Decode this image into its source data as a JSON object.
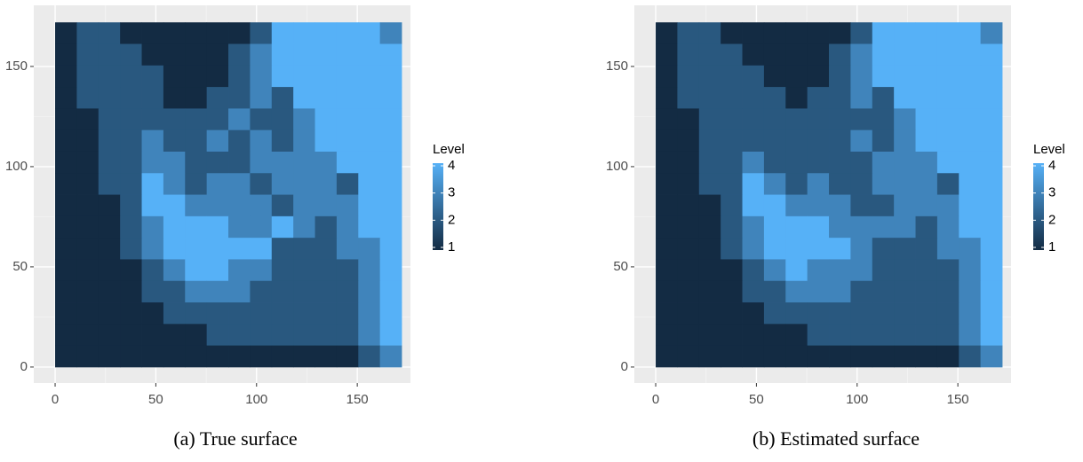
{
  "chart_data": [
    {
      "type": "heatmap",
      "caption": "(a) True surface",
      "x": [
        5.375,
        16.125,
        26.875,
        37.625,
        48.375,
        59.125,
        69.875,
        80.625,
        91.375,
        102.125,
        112.875,
        123.625,
        134.375,
        145.125,
        155.875,
        166.625
      ],
      "y": [
        166.625,
        155.875,
        145.125,
        134.375,
        123.625,
        112.875,
        102.125,
        91.375,
        80.625,
        69.875,
        59.125,
        48.375,
        37.625,
        26.875,
        16.125,
        5.375
      ],
      "z": [
        [
          1,
          2,
          2,
          1,
          1,
          1,
          1,
          1,
          1,
          2,
          4,
          4,
          4,
          4,
          4,
          3
        ],
        [
          1,
          2,
          2,
          2,
          1,
          1,
          1,
          1,
          2,
          3,
          4,
          4,
          4,
          4,
          4,
          4
        ],
        [
          1,
          2,
          2,
          2,
          2,
          1,
          1,
          1,
          2,
          3,
          4,
          4,
          4,
          4,
          4,
          4
        ],
        [
          1,
          2,
          2,
          2,
          2,
          1,
          1,
          2,
          2,
          3,
          2,
          4,
          4,
          4,
          4,
          4
        ],
        [
          1,
          1,
          2,
          2,
          2,
          2,
          2,
          2,
          3,
          2,
          2,
          3,
          4,
          4,
          4,
          4
        ],
        [
          1,
          1,
          2,
          2,
          3,
          2,
          2,
          3,
          2,
          3,
          2,
          3,
          4,
          4,
          4,
          4
        ],
        [
          1,
          1,
          2,
          2,
          3,
          3,
          2,
          2,
          2,
          3,
          3,
          3,
          3,
          4,
          4,
          4
        ],
        [
          1,
          1,
          2,
          2,
          4,
          3,
          2,
          3,
          3,
          2,
          3,
          3,
          3,
          2,
          4,
          4
        ],
        [
          1,
          1,
          1,
          2,
          4,
          4,
          3,
          3,
          3,
          3,
          2,
          3,
          3,
          3,
          4,
          4
        ],
        [
          1,
          1,
          1,
          2,
          3,
          4,
          4,
          4,
          3,
          3,
          4,
          3,
          2,
          3,
          4,
          4
        ],
        [
          1,
          1,
          1,
          2,
          3,
          4,
          4,
          4,
          4,
          4,
          2,
          2,
          2,
          3,
          3,
          4
        ],
        [
          1,
          1,
          1,
          1,
          2,
          3,
          4,
          4,
          3,
          3,
          2,
          2,
          2,
          2,
          3,
          4
        ],
        [
          1,
          1,
          1,
          1,
          2,
          2,
          3,
          3,
          3,
          2,
          2,
          2,
          2,
          2,
          3,
          4
        ],
        [
          1,
          1,
          1,
          1,
          1,
          2,
          2,
          2,
          2,
          2,
          2,
          2,
          2,
          2,
          3,
          4
        ],
        [
          1,
          1,
          1,
          1,
          1,
          1,
          1,
          2,
          2,
          2,
          2,
          2,
          2,
          2,
          3,
          4
        ],
        [
          1,
          1,
          1,
          1,
          1,
          1,
          1,
          1,
          1,
          1,
          1,
          1,
          1,
          1,
          2,
          3
        ]
      ],
      "xlim": [
        -10.6,
        176.4
      ],
      "ylim": [
        -8,
        180.5
      ],
      "xticks": [
        0,
        50,
        100,
        150
      ],
      "yticks": [
        0,
        50,
        100,
        150
      ],
      "legend_title": "Level",
      "legend_lim": [
        1,
        4
      ],
      "legend_ticks": [
        1,
        2,
        3,
        4
      ],
      "colors": [
        "#132b43",
        "#56b1f7"
      ]
    },
    {
      "type": "heatmap",
      "caption": "(b) Estimated surface",
      "x": [
        5.375,
        16.125,
        26.875,
        37.625,
        48.375,
        59.125,
        69.875,
        80.625,
        91.375,
        102.125,
        112.875,
        123.625,
        134.375,
        145.125,
        155.875,
        166.625
      ],
      "y": [
        166.625,
        155.875,
        145.125,
        134.375,
        123.625,
        112.875,
        102.125,
        91.375,
        80.625,
        69.875,
        59.125,
        48.375,
        37.625,
        26.875,
        16.125,
        5.375
      ],
      "z": [
        [
          1,
          2,
          2,
          1,
          1,
          1,
          1,
          1,
          1,
          2,
          4,
          4,
          4,
          4,
          4,
          3
        ],
        [
          1,
          2,
          2,
          2,
          1,
          1,
          1,
          1,
          2,
          3,
          4,
          4,
          4,
          4,
          4,
          4
        ],
        [
          1,
          2,
          2,
          2,
          2,
          1,
          1,
          1,
          2,
          3,
          4,
          4,
          4,
          4,
          4,
          4
        ],
        [
          1,
          2,
          2,
          2,
          2,
          2,
          1,
          2,
          2,
          3,
          2,
          4,
          4,
          4,
          4,
          4
        ],
        [
          1,
          1,
          2,
          2,
          2,
          2,
          2,
          2,
          2,
          2,
          2,
          3,
          4,
          4,
          4,
          4
        ],
        [
          1,
          1,
          2,
          2,
          2,
          2,
          2,
          2,
          2,
          3,
          2,
          3,
          4,
          4,
          4,
          4
        ],
        [
          1,
          1,
          2,
          2,
          3,
          2,
          2,
          2,
          2,
          2,
          3,
          3,
          3,
          4,
          4,
          4
        ],
        [
          1,
          1,
          2,
          2,
          4,
          3,
          2,
          3,
          2,
          2,
          3,
          3,
          3,
          2,
          4,
          4
        ],
        [
          1,
          1,
          1,
          2,
          4,
          4,
          3,
          3,
          3,
          2,
          2,
          3,
          3,
          3,
          4,
          4
        ],
        [
          1,
          1,
          1,
          2,
          3,
          4,
          4,
          4,
          3,
          3,
          3,
          3,
          2,
          3,
          4,
          4
        ],
        [
          1,
          1,
          1,
          2,
          3,
          4,
          4,
          4,
          4,
          3,
          2,
          2,
          2,
          3,
          3,
          4
        ],
        [
          1,
          1,
          1,
          1,
          2,
          3,
          4,
          3,
          3,
          3,
          2,
          2,
          2,
          2,
          3,
          4
        ],
        [
          1,
          1,
          1,
          1,
          2,
          2,
          3,
          3,
          3,
          2,
          2,
          2,
          2,
          2,
          3,
          4
        ],
        [
          1,
          1,
          1,
          1,
          1,
          2,
          2,
          2,
          2,
          2,
          2,
          2,
          2,
          2,
          3,
          4
        ],
        [
          1,
          1,
          1,
          1,
          1,
          1,
          1,
          2,
          2,
          2,
          2,
          2,
          2,
          2,
          3,
          4
        ],
        [
          1,
          1,
          1,
          1,
          1,
          1,
          1,
          1,
          1,
          1,
          1,
          1,
          1,
          1,
          2,
          3
        ]
      ],
      "xlim": [
        -10.6,
        176.4
      ],
      "ylim": [
        -8,
        180.5
      ],
      "xticks": [
        0,
        50,
        100,
        150
      ],
      "yticks": [
        0,
        50,
        100,
        150
      ],
      "legend_title": "Level",
      "legend_lim": [
        1,
        4
      ],
      "legend_ticks": [
        1,
        2,
        3,
        4
      ],
      "colors": [
        "#132b43",
        "#56b1f7"
      ]
    }
  ]
}
